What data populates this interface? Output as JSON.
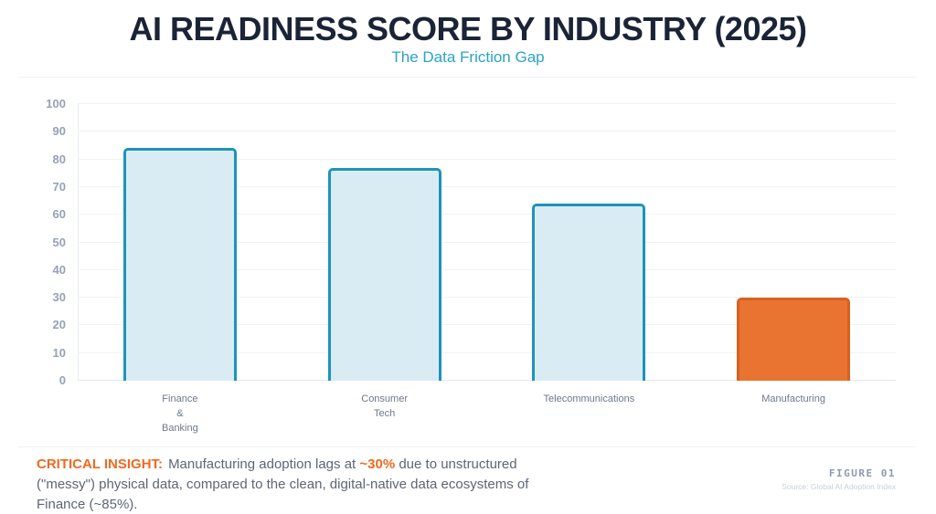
{
  "header": {
    "title": "AI READINESS SCORE BY INDUSTRY (2025)",
    "subtitle": "The Data Friction Gap"
  },
  "chart_data": {
    "type": "bar",
    "title": "AI READINESS SCORE BY INDUSTRY (2025)",
    "subtitle": "The Data Friction Gap",
    "categories": [
      "Finance & Banking",
      "Consumer Tech",
      "Telecommunications",
      "Manufacturing"
    ],
    "category_label_lines": [
      [
        "Finance",
        "&",
        "Banking"
      ],
      [
        "Consumer",
        "Tech"
      ],
      [
        "Telecommunications"
      ],
      [
        "Manufacturing"
      ]
    ],
    "values": [
      84,
      77,
      64,
      30
    ],
    "xlabel": "",
    "ylabel": "",
    "ylim": [
      0,
      100
    ],
    "yticks": [
      0,
      10,
      20,
      30,
      40,
      50,
      60,
      70,
      80,
      90,
      100
    ],
    "grid": "horizontal",
    "legend": "none",
    "bar_colors": [
      {
        "fill": "#d9ecf4",
        "border": "#1e93b9"
      },
      {
        "fill": "#d9ecf4",
        "border": "#1e93b9"
      },
      {
        "fill": "#d9ecf4",
        "border": "#1e93b9"
      },
      {
        "fill": "#e97431",
        "border": "#d8611f"
      }
    ]
  },
  "insight": {
    "label": "CRITICAL INSIGHT:",
    "text_before": "Manufacturing adoption lags at ",
    "highlight": "~30%",
    "text_after": " due to unstructured (\"messy\") physical data, compared to the clean, digital-native data ecosystems of Finance (~85%)."
  },
  "footer": {
    "figure_label": "FIGURE 01",
    "source": "Source: Global AI Adoption Index"
  },
  "colors": {
    "title": "#1b2436",
    "subtitle": "#2aa3c4",
    "accent_orange": "#ee6a21",
    "axis_label": "#97a1b4",
    "body_text": "#5d6673"
  }
}
